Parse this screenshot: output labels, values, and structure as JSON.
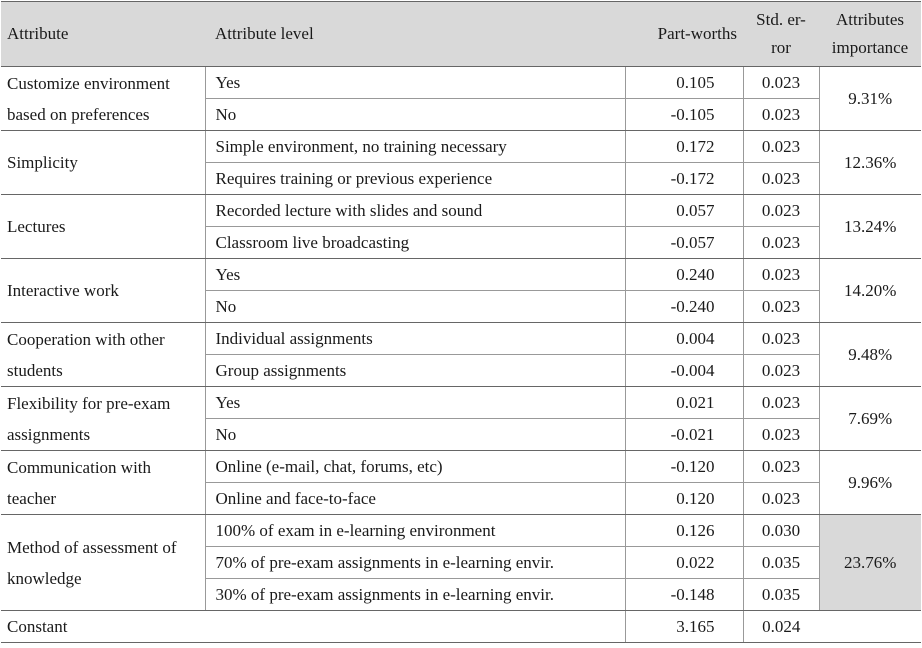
{
  "headers": {
    "attribute": "Attribute",
    "level": "Attribute level",
    "partworths": "Part-worths",
    "stderr_line1": "Std. er-",
    "stderr_line2": "ror",
    "importance_line1": "Attributes",
    "importance_line2": "importance"
  },
  "groups": [
    {
      "attribute": "Customize environment based on preferences",
      "importance": "9.31%",
      "levels": [
        {
          "level": "Yes",
          "pw": "0.105",
          "se": "0.023"
        },
        {
          "level": "No",
          "pw": "-0.105",
          "se": "0.023"
        }
      ]
    },
    {
      "attribute": "Simplicity",
      "importance": "12.36%",
      "levels": [
        {
          "level": "Simple environment, no training necessary",
          "pw": "0.172",
          "se": "0.023"
        },
        {
          "level": "Requires training or previous experience",
          "pw": "-0.172",
          "se": "0.023"
        }
      ]
    },
    {
      "attribute": "Lectures",
      "importance": "13.24%",
      "levels": [
        {
          "level": "Recorded lecture with slides and sound",
          "pw": "0.057",
          "se": "0.023"
        },
        {
          "level": "Classroom live broadcasting",
          "pw": "-0.057",
          "se": "0.023"
        }
      ]
    },
    {
      "attribute": "Interactive work",
      "importance": "14.20%",
      "levels": [
        {
          "level": "Yes",
          "pw": "0.240",
          "se": "0.023"
        },
        {
          "level": "No",
          "pw": "-0.240",
          "se": "0.023"
        }
      ]
    },
    {
      "attribute": "Cooperation with other students",
      "importance": "9.48%",
      "levels": [
        {
          "level": "Individual assignments",
          "pw": "0.004",
          "se": "0.023"
        },
        {
          "level": "Group assignments",
          "pw": "-0.004",
          "se": "0.023"
        }
      ]
    },
    {
      "attribute": "Flexibility for pre-exam assignments",
      "importance": "7.69%",
      "levels": [
        {
          "level": "Yes",
          "pw": "0.021",
          "se": "0.023"
        },
        {
          "level": "No",
          "pw": "-0.021",
          "se": "0.023"
        }
      ]
    },
    {
      "attribute": "Communication with teacher",
      "importance": "9.96%",
      "levels": [
        {
          "level": "Online (e-mail, chat, forums, etc)",
          "pw": "-0.120",
          "se": "0.023"
        },
        {
          "level": "Online and face-to-face",
          "pw": "0.120",
          "se": "0.023"
        }
      ]
    },
    {
      "attribute": "Method of assessment of knowledge",
      "importance": "23.76%",
      "highlight": true,
      "levels": [
        {
          "level": "100% of exam in e-learning environment",
          "pw": "0.126",
          "se": "0.030"
        },
        {
          "level": "70% of pre-exam assignments in e-learning envir.",
          "pw": "0.022",
          "se": "0.035"
        },
        {
          "level": "30% of pre-exam assignments in e-learning envir.",
          "pw": "-0.148",
          "se": "0.035"
        }
      ]
    }
  ],
  "constant": {
    "label": "Constant",
    "pw": "3.165",
    "se": "0.024"
  }
}
